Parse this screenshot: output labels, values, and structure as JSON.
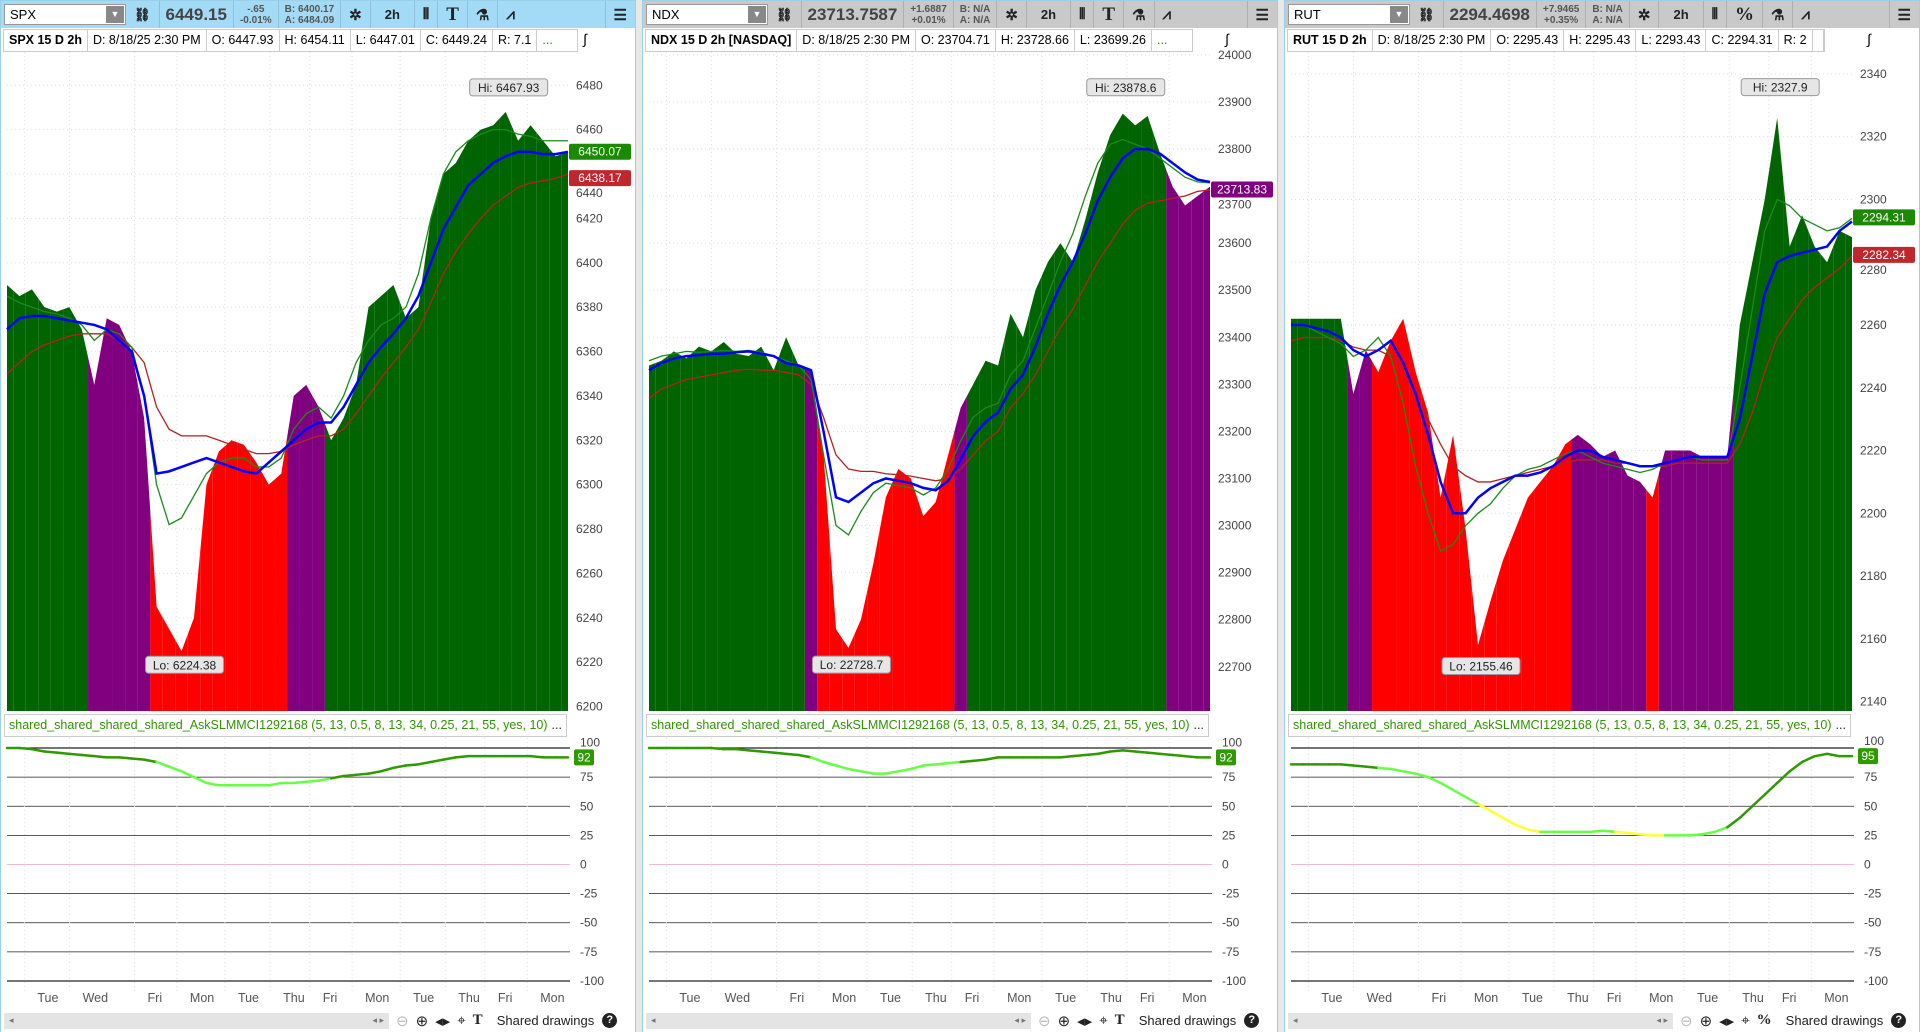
{
  "colors": {
    "green": "#006400",
    "purple": "#800080",
    "red": "#ff0000",
    "blue": "#0000ff",
    "ma_fast": "#1a8a1a",
    "ma_slow": "#b22222",
    "ind_dark": "#2e9a00",
    "ind_light": "#66ff44",
    "ind_yellow": "#ffff33"
  },
  "shared_drawings": "Shared drawings",
  "x_labels": [
    "Tue",
    "Wed",
    "Fri",
    "Mon",
    "Tue",
    "Thu",
    "Fri",
    "Mon",
    "Tue",
    "Thu",
    "Fri",
    "Mon"
  ],
  "ind_ticks": [
    100,
    75,
    50,
    25,
    0,
    -25,
    -50,
    -75,
    -100
  ],
  "panels": [
    {
      "symbol": "SPX",
      "price": "6449.15",
      "chg": "-.65",
      "chg_pct": "-0.01%",
      "bid": "B: 6400.17",
      "ask": "A: 6484.09",
      "tool5": "T",
      "tool_last": "T",
      "info": [
        "SPX 15 D 2h",
        "D: 8/18/25 2:30 PM",
        "O: 6447.93",
        "H: 6454.11",
        "L: 6447.01",
        "C: 6449.24",
        "R: 7.1",
        "..."
      ],
      "ylim": [
        6198,
        6495
      ],
      "ticks": [
        6480,
        6460,
        6440,
        6420,
        6400,
        6380,
        6360,
        6340,
        6320,
        6300,
        6280,
        6260,
        6240,
        6220,
        6200
      ],
      "hi": "Hi: 6467.93",
      "lo": "Lo: 6224.38",
      "hi_idx": 40,
      "hi_val": 6468,
      "lo_idx": 14,
      "lo_val": 6224,
      "badges": [
        {
          "text": "6450.07",
          "value": 6450.07,
          "color": "#1b8a00"
        },
        {
          "text": "6438.17",
          "value": 6438.17,
          "color": "#c0272d"
        }
      ],
      "bar_colors": "GGGGGGGPPPPPRRRRRRRRRRRPPPGGGGGGGGGGGGGGGGGGGG",
      "top": [
        6390,
        6385,
        6388,
        6380,
        6378,
        6380,
        6370,
        6345,
        6375,
        6372,
        6360,
        6330,
        6245,
        6235,
        6225,
        6240,
        6300,
        6315,
        6320,
        6318,
        6310,
        6300,
        6305,
        6340,
        6345,
        6335,
        6320,
        6330,
        6345,
        6380,
        6385,
        6390,
        6375,
        6380,
        6420,
        6440,
        6445,
        6455,
        6460,
        6462,
        6468,
        6455,
        6462,
        6455,
        6448,
        6450
      ],
      "blue": [
        6370,
        6375,
        6376,
        6376,
        6375,
        6374,
        6373,
        6372,
        6370,
        6365,
        6360,
        6340,
        6305,
        6306,
        6308,
        6310,
        6312,
        6310,
        6308,
        6306,
        6305,
        6310,
        6315,
        6320,
        6325,
        6328,
        6328,
        6335,
        6345,
        6355,
        6362,
        6368,
        6375,
        6385,
        6400,
        6415,
        6425,
        6435,
        6440,
        6445,
        6448,
        6450,
        6450,
        6449,
        6449,
        6450
      ],
      "fast": [
        6385,
        6382,
        6380,
        6378,
        6377,
        6375,
        6372,
        6365,
        6370,
        6368,
        6362,
        6340,
        6300,
        6282,
        6285,
        6295,
        6305,
        6310,
        6312,
        6312,
        6308,
        6308,
        6312,
        6325,
        6332,
        6335,
        6330,
        6340,
        6355,
        6365,
        6372,
        6375,
        6380,
        6395,
        6420,
        6440,
        6450,
        6455,
        6458,
        6460,
        6460,
        6458,
        6457,
        6455,
        6455,
        6455
      ],
      "slow": [
        6350,
        6355,
        6360,
        6363,
        6365,
        6367,
        6368,
        6368,
        6368,
        6365,
        6362,
        6355,
        6335,
        6325,
        6322,
        6322,
        6322,
        6320,
        6318,
        6316,
        6314,
        6314,
        6315,
        6318,
        6320,
        6322,
        6322,
        6325,
        6332,
        6340,
        6348,
        6355,
        6362,
        6370,
        6382,
        6395,
        6405,
        6413,
        6420,
        6426,
        6430,
        6434,
        6436,
        6437,
        6438,
        6440
      ],
      "ind_label": "shared_shared_shared_shared_AskSLMMCI1292168 (5, 13, 0.5, 8, 13, 34, 0.25, 21, 55, yes, 10)",
      "ind_badge": "92",
      "ind": [
        100,
        100,
        99,
        97,
        96,
        95,
        94,
        93,
        92,
        92,
        91,
        90,
        88,
        84,
        80,
        75,
        70,
        68,
        68,
        68,
        68,
        68,
        70,
        70,
        71,
        72,
        74,
        76,
        77,
        78,
        80,
        83,
        85,
        86,
        88,
        90,
        92,
        93,
        93,
        93,
        93,
        93,
        93,
        92,
        92,
        92
      ],
      "ind_colors": "DDDDDDDDDDDDLLLLLLLLLLLLLLDDDDDDDDDDDDDDDDDDDD"
    },
    {
      "symbol": "NDX",
      "price": "23713.7587",
      "chg": "+1.6887",
      "chg_pct": "+0.01%",
      "bid": "B: N/A",
      "ask": "A: N/A",
      "tool5": "T",
      "tool_last": "T",
      "info": [
        "NDX 15 D 2h [NASDAQ]",
        "D: 8/18/25 2:30 PM",
        "O: 23704.71",
        "H: 23728.66",
        "L: 23699.26",
        "..."
      ],
      "ylim": [
        22606,
        24006
      ],
      "ticks": [
        24000,
        23900,
        23800,
        23700,
        23600,
        23500,
        23400,
        23300,
        23200,
        23100,
        23000,
        22900,
        22800,
        22700
      ],
      "hi": "Hi: 23878.6",
      "lo": "Lo: 22728.7",
      "hi_idx": 38,
      "hi_val": 23879,
      "lo_idx": 16,
      "lo_val": 22729,
      "badges": [
        {
          "text": "23713.83",
          "value": 23713.83,
          "color": "#800080"
        }
      ],
      "bar_colors": "GGGGGGGGGGGGGPRRRRRRRRRRRPGGGGGGGGGGGGGGGGPPPP",
      "top": [
        23340,
        23350,
        23370,
        23355,
        23380,
        23370,
        23390,
        23365,
        23360,
        23380,
        23330,
        23400,
        23340,
        23330,
        23150,
        22780,
        22740,
        22800,
        22920,
        23060,
        23120,
        23100,
        23020,
        23050,
        23150,
        23250,
        23300,
        23350,
        23340,
        23450,
        23400,
        23500,
        23560,
        23600,
        23560,
        23650,
        23750,
        23830,
        23875,
        23850,
        23870,
        23790,
        23720,
        23680,
        23700,
        23720
      ],
      "blue": [
        23330,
        23345,
        23355,
        23360,
        23362,
        23365,
        23365,
        23368,
        23370,
        23365,
        23360,
        23345,
        23340,
        23330,
        23200,
        23060,
        23050,
        23070,
        23090,
        23100,
        23095,
        23090,
        23080,
        23075,
        23095,
        23140,
        23190,
        23220,
        23240,
        23290,
        23320,
        23380,
        23450,
        23510,
        23560,
        23620,
        23690,
        23740,
        23780,
        23800,
        23800,
        23790,
        23770,
        23750,
        23735,
        23730
      ],
      "fast": [
        23350,
        23360,
        23365,
        23370,
        23368,
        23370,
        23372,
        23370,
        23372,
        23368,
        23360,
        23350,
        23340,
        23310,
        23150,
        23000,
        22980,
        23030,
        23070,
        23090,
        23085,
        23080,
        23065,
        23080,
        23120,
        23180,
        23230,
        23250,
        23260,
        23320,
        23350,
        23420,
        23490,
        23560,
        23620,
        23700,
        23770,
        23810,
        23820,
        23810,
        23800,
        23780,
        23760,
        23740,
        23730,
        23728
      ],
      "slow": [
        23270,
        23290,
        23300,
        23310,
        23315,
        23320,
        23325,
        23330,
        23332,
        23330,
        23330,
        23325,
        23320,
        23300,
        23230,
        23150,
        23120,
        23115,
        23115,
        23110,
        23108,
        23105,
        23100,
        23095,
        23100,
        23120,
        23150,
        23180,
        23200,
        23250,
        23280,
        23320,
        23370,
        23420,
        23460,
        23510,
        23560,
        23600,
        23640,
        23670,
        23685,
        23690,
        23695,
        23700,
        23710,
        23713
      ],
      "ind_label": "shared_shared_shared_shared_AskSLMMCI1292168 (5, 13, 0.5, 8, 13, 34, 0.25, 21, 55, yes, 10)",
      "ind_badge": "92",
      "ind": [
        100,
        100,
        100,
        100,
        100,
        100,
        99,
        99,
        98,
        97,
        96,
        95,
        94,
        92,
        88,
        85,
        82,
        80,
        78,
        78,
        80,
        82,
        85,
        86,
        87,
        88,
        89,
        90,
        92,
        92,
        92,
        92,
        92,
        92,
        93,
        94,
        95,
        97,
        98,
        97,
        96,
        95,
        94,
        93,
        92,
        92
      ],
      "ind_colors": "DDDDDDDDDDDDDLLLLLLLLLLLLDDDDDDDDDDDDDDDDDDDDD"
    },
    {
      "symbol": "RUT",
      "price": "2294.4698",
      "chg": "+7.9465",
      "chg_pct": "+0.35%",
      "bid": "B: N/A",
      "ask": "A: N/A",
      "tool5": "%",
      "tool_last": "%",
      "info": [
        "RUT 15 D 2h",
        "D: 8/18/25 2:30 PM",
        "O: 2295.43",
        "H: 2295.43",
        "L: 2293.43",
        "C: 2294.31",
        "R: 2",
        ""
      ],
      "ylim": [
        2137,
        2347
      ],
      "ticks": [
        2340,
        2320,
        2300,
        2280,
        2260,
        2240,
        2220,
        2200,
        2180,
        2160,
        2140
      ],
      "hi": "Hi: 2327.9",
      "lo": "Lo: 2155.46",
      "hi_idx": 39,
      "hi_val": 2328,
      "lo_idx": 15,
      "lo_val": 2155,
      "badges": [
        {
          "text": "2294.31",
          "value": 2294.31,
          "color": "#1b8a00"
        },
        {
          "text": "2282.34",
          "value": 2282.34,
          "color": "#c0272d"
        }
      ],
      "bar_colors": "GGGGGPPRRRRRRRRRRRRRRRRPPPPPPRPPPPPPGGGGGGGGGG",
      "top": [
        2262,
        2262,
        2262,
        2262,
        2262,
        2238,
        2252,
        2245,
        2255,
        2262,
        2245,
        2232,
        2205,
        2225,
        2195,
        2158,
        2172,
        2185,
        2195,
        2205,
        2210,
        2215,
        2222,
        2225,
        2222,
        2218,
        2220,
        2212,
        2210,
        2205,
        2220,
        2220,
        2220,
        2218,
        2218,
        2218,
        2260,
        2280,
        2300,
        2326,
        2285,
        2295,
        2285,
        2280,
        2290,
        2288
      ],
      "blue": [
        2260,
        2260,
        2259,
        2258,
        2256,
        2252,
        2250,
        2252,
        2255,
        2248,
        2238,
        2225,
        2210,
        2200,
        2200,
        2205,
        2208,
        2210,
        2212,
        2212,
        2213,
        2215,
        2218,
        2220,
        2220,
        2218,
        2217,
        2216,
        2215,
        2215,
        2216,
        2217,
        2218,
        2218,
        2218,
        2218,
        2230,
        2250,
        2270,
        2280,
        2282,
        2283,
        2284,
        2285,
        2290,
        2293
      ],
      "fast": [
        2260,
        2260,
        2258,
        2256,
        2254,
        2250,
        2252,
        2256,
        2250,
        2235,
        2215,
        2200,
        2188,
        2190,
        2196,
        2200,
        2203,
        2208,
        2212,
        2214,
        2215,
        2217,
        2219,
        2220,
        2218,
        2216,
        2215,
        2214,
        2213,
        2214,
        2216,
        2217,
        2218,
        2217,
        2217,
        2217,
        2240,
        2265,
        2290,
        2300,
        2298,
        2294,
        2292,
        2290,
        2291,
        2294
      ],
      "slow": [
        2255,
        2256,
        2256,
        2256,
        2255,
        2253,
        2252,
        2252,
        2250,
        2245,
        2238,
        2230,
        2222,
        2215,
        2212,
        2210,
        2210,
        2211,
        2212,
        2213,
        2214,
        2215,
        2216,
        2217,
        2217,
        2217,
        2216,
        2216,
        2215,
        2215,
        2215,
        2216,
        2216,
        2216,
        2216,
        2216,
        2222,
        2232,
        2245,
        2256,
        2262,
        2268,
        2272,
        2275,
        2278,
        2282
      ],
      "ind_label": "shared_shared_shared_shared_AskSLMMCI1292168 (5, 13, 0.5, 8, 13, 34, 0.25, 21, 55, yes, 10)",
      "ind_badge": "95",
      "ind": [
        86,
        86,
        86,
        86,
        86,
        85,
        84,
        83,
        82,
        80,
        78,
        75,
        70,
        64,
        58,
        52,
        46,
        40,
        34,
        30,
        28,
        28,
        28,
        28,
        28,
        29,
        28,
        27,
        26,
        25,
        25,
        25,
        25,
        26,
        28,
        32,
        40,
        50,
        60,
        70,
        80,
        88,
        93,
        95,
        93,
        93
      ],
      "ind_colors": "DDDDDDDLLLLLLLLYYYYYLLLLLLYYYYLLLLLDDDDDDDDDDD"
    }
  ]
}
